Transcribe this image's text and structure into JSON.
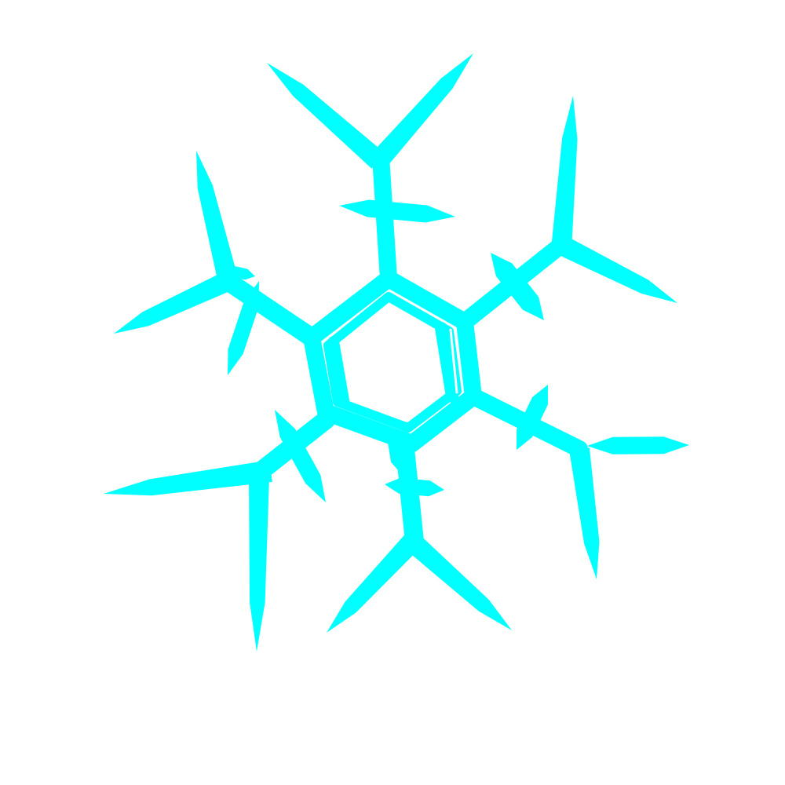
{
  "image": {
    "subject": "snowflake",
    "background_color": "#ffffff",
    "ink_color": "#00ffff",
    "highlight_color": "#ffffff",
    "arm_count": 6
  }
}
